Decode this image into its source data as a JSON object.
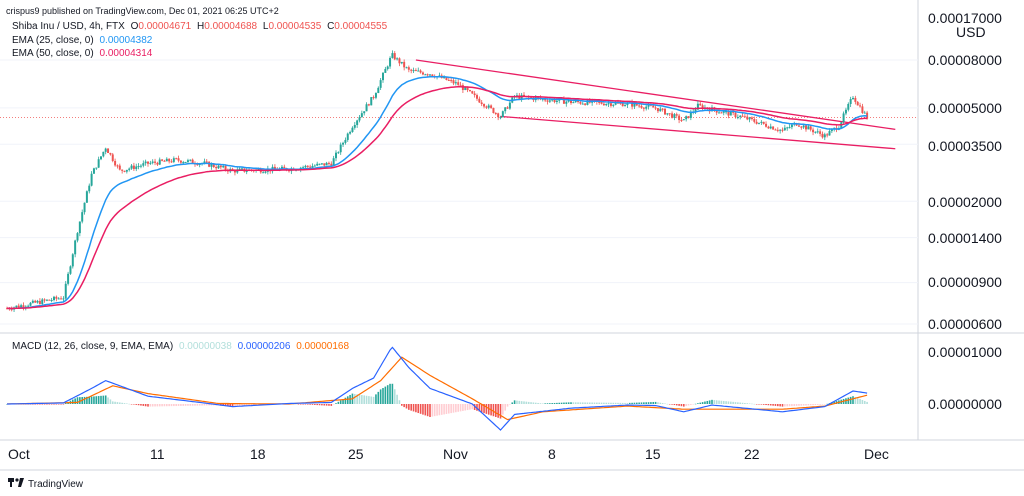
{
  "header": {
    "published": "crispus9 published on TradingView.com, Dec 01, 2021 06:25 UTC+2"
  },
  "legend": {
    "symbol": "Shiba Inu / USD, 4h, FTX",
    "o_label": "O",
    "o_value": "0.00004671",
    "h_label": "H",
    "h_value": "0.00004688",
    "l_label": "L",
    "l_value": "0.00004535",
    "c_label": "C",
    "c_value": "0.00004555",
    "ema25_label": "EMA (25, close, 0)",
    "ema25_value": "0.00004382",
    "ema50_label": "EMA (50, close, 0)",
    "ema50_value": "0.00004314",
    "macd_label": "MACD (12, 26, close, 9, EMA, EMA)",
    "macd_hist_value": "0.00000038",
    "macd_value": "0.00000206",
    "signal_value": "0.00000168"
  },
  "footer": {
    "brand": "TradingView"
  },
  "colors": {
    "up": "#26a69a",
    "down": "#ef5350",
    "ema25": "#2196f3",
    "ema50": "#e91e63",
    "channel": "#e91e63",
    "macd": "#2962ff",
    "signal": "#ff6d00",
    "hist_up": "#26a69a",
    "hist_up_light": "#b2dfdb",
    "hist_down": "#ef5350",
    "hist_down_light": "#ffcdd2",
    "price_line": "#ef5350",
    "grid": "#e0e3eb",
    "text": "#131722"
  },
  "chart_data": [
    {
      "type": "candlestick",
      "title": "Shiba Inu / USD, 4h, FTX",
      "y_axis_unit": "USD",
      "y_scale": "log",
      "y_ticks": [
        "0.00017000",
        "0.00008000",
        "0.00005000",
        "0.00003500",
        "0.00002000",
        "0.00001400",
        "0.00000900",
        "0.00000600"
      ],
      "x_ticks": [
        "Oct",
        "11",
        "18",
        "25",
        "Nov",
        "8",
        "15",
        "22",
        "Dec"
      ],
      "price_keypoints": [
        {
          "x": 0,
          "y": 7e-06
        },
        {
          "x": 4,
          "y": 7.8e-06
        },
        {
          "x": 5,
          "y": 1.5e-05
        },
        {
          "x": 6,
          "y": 2.6e-05
        },
        {
          "x": 7,
          "y": 3.4e-05
        },
        {
          "x": 8,
          "y": 2.7e-05
        },
        {
          "x": 10,
          "y": 2.9e-05
        },
        {
          "x": 12,
          "y": 3e-05
        },
        {
          "x": 14,
          "y": 2.9e-05
        },
        {
          "x": 16,
          "y": 2.7e-05
        },
        {
          "x": 20,
          "y": 2.75e-05
        },
        {
          "x": 23,
          "y": 2.9e-05
        },
        {
          "x": 24.5,
          "y": 4.2e-05
        },
        {
          "x": 26,
          "y": 5.6e-05
        },
        {
          "x": 27.3,
          "y": 8.4e-05
        },
        {
          "x": 28.5,
          "y": 7.2e-05
        },
        {
          "x": 30,
          "y": 7e-05
        },
        {
          "x": 32,
          "y": 6.3e-05
        },
        {
          "x": 35,
          "y": 4.6e-05
        },
        {
          "x": 36,
          "y": 5.6e-05
        },
        {
          "x": 40,
          "y": 5.3e-05
        },
        {
          "x": 44,
          "y": 5.2e-05
        },
        {
          "x": 46,
          "y": 5e-05
        },
        {
          "x": 48,
          "y": 4.4e-05
        },
        {
          "x": 49,
          "y": 5.1e-05
        },
        {
          "x": 52,
          "y": 4.6e-05
        },
        {
          "x": 55,
          "y": 4e-05
        },
        {
          "x": 56,
          "y": 4.3e-05
        },
        {
          "x": 58,
          "y": 3.8e-05
        },
        {
          "x": 59,
          "y": 4.2e-05
        },
        {
          "x": 60,
          "y": 5.6e-05
        },
        {
          "x": 61,
          "y": 4.55e-05
        }
      ],
      "ema25_last": 4.382e-05,
      "ema50_last": 4.314e-05,
      "last_close": 4.555e-05,
      "channel_upper": [
        {
          "x": 29,
          "y": 8e-05
        },
        {
          "x": 63,
          "y": 4.05e-05
        }
      ],
      "channel_lower": [
        {
          "x": 35,
          "y": 4.6e-05
        },
        {
          "x": 63,
          "y": 3.35e-05
        }
      ]
    },
    {
      "type": "line",
      "title": "MACD (12, 26, close, 9, EMA, EMA)",
      "y_ticks": [
        "0.00001000",
        "0.00000000"
      ],
      "series_values_last": {
        "histogram": 3.8e-07,
        "macd": 2.06e-06,
        "signal": 1.68e-06
      },
      "macd_keypoints": [
        {
          "x": 0,
          "y": 0
        },
        {
          "x": 4,
          "y": 2e-07
        },
        {
          "x": 6,
          "y": 3e-06
        },
        {
          "x": 7,
          "y": 4.5e-06
        },
        {
          "x": 10,
          "y": 1.5e-06
        },
        {
          "x": 14,
          "y": 2e-07
        },
        {
          "x": 16,
          "y": -5e-07
        },
        {
          "x": 20,
          "y": 1e-07
        },
        {
          "x": 23,
          "y": 3e-07
        },
        {
          "x": 24.5,
          "y": 3e-06
        },
        {
          "x": 26,
          "y": 5e-06
        },
        {
          "x": 27.3,
          "y": 1.1e-05
        },
        {
          "x": 28.5,
          "y": 7e-06
        },
        {
          "x": 30,
          "y": 3e-06
        },
        {
          "x": 33,
          "y": 0
        },
        {
          "x": 35,
          "y": -5e-06
        },
        {
          "x": 36,
          "y": -2e-06
        },
        {
          "x": 40,
          "y": -8e-07
        },
        {
          "x": 44,
          "y": -2e-07
        },
        {
          "x": 46,
          "y": -3e-07
        },
        {
          "x": 48,
          "y": -1.5e-06
        },
        {
          "x": 50,
          "y": -2e-07
        },
        {
          "x": 55,
          "y": -1.5e-06
        },
        {
          "x": 58,
          "y": -5e-07
        },
        {
          "x": 60,
          "y": 2.5e-06
        },
        {
          "x": 61,
          "y": 2.1e-06
        }
      ],
      "signal_keypoints": [
        {
          "x": 0,
          "y": 0
        },
        {
          "x": 5,
          "y": 3e-07
        },
        {
          "x": 7.5,
          "y": 3.5e-06
        },
        {
          "x": 10,
          "y": 2e-06
        },
        {
          "x": 15,
          "y": 1e-07
        },
        {
          "x": 20,
          "y": 0
        },
        {
          "x": 24.5,
          "y": 1e-06
        },
        {
          "x": 26.5,
          "y": 4.5e-06
        },
        {
          "x": 28,
          "y": 9e-06
        },
        {
          "x": 30,
          "y": 5.5e-06
        },
        {
          "x": 33,
          "y": 1e-06
        },
        {
          "x": 35.5,
          "y": -3e-06
        },
        {
          "x": 38,
          "y": -1.5e-06
        },
        {
          "x": 44,
          "y": -4e-07
        },
        {
          "x": 48,
          "y": -1e-06
        },
        {
          "x": 55,
          "y": -1e-06
        },
        {
          "x": 58,
          "y": -4e-07
        },
        {
          "x": 61,
          "y": 1.7e-06
        }
      ]
    }
  ]
}
